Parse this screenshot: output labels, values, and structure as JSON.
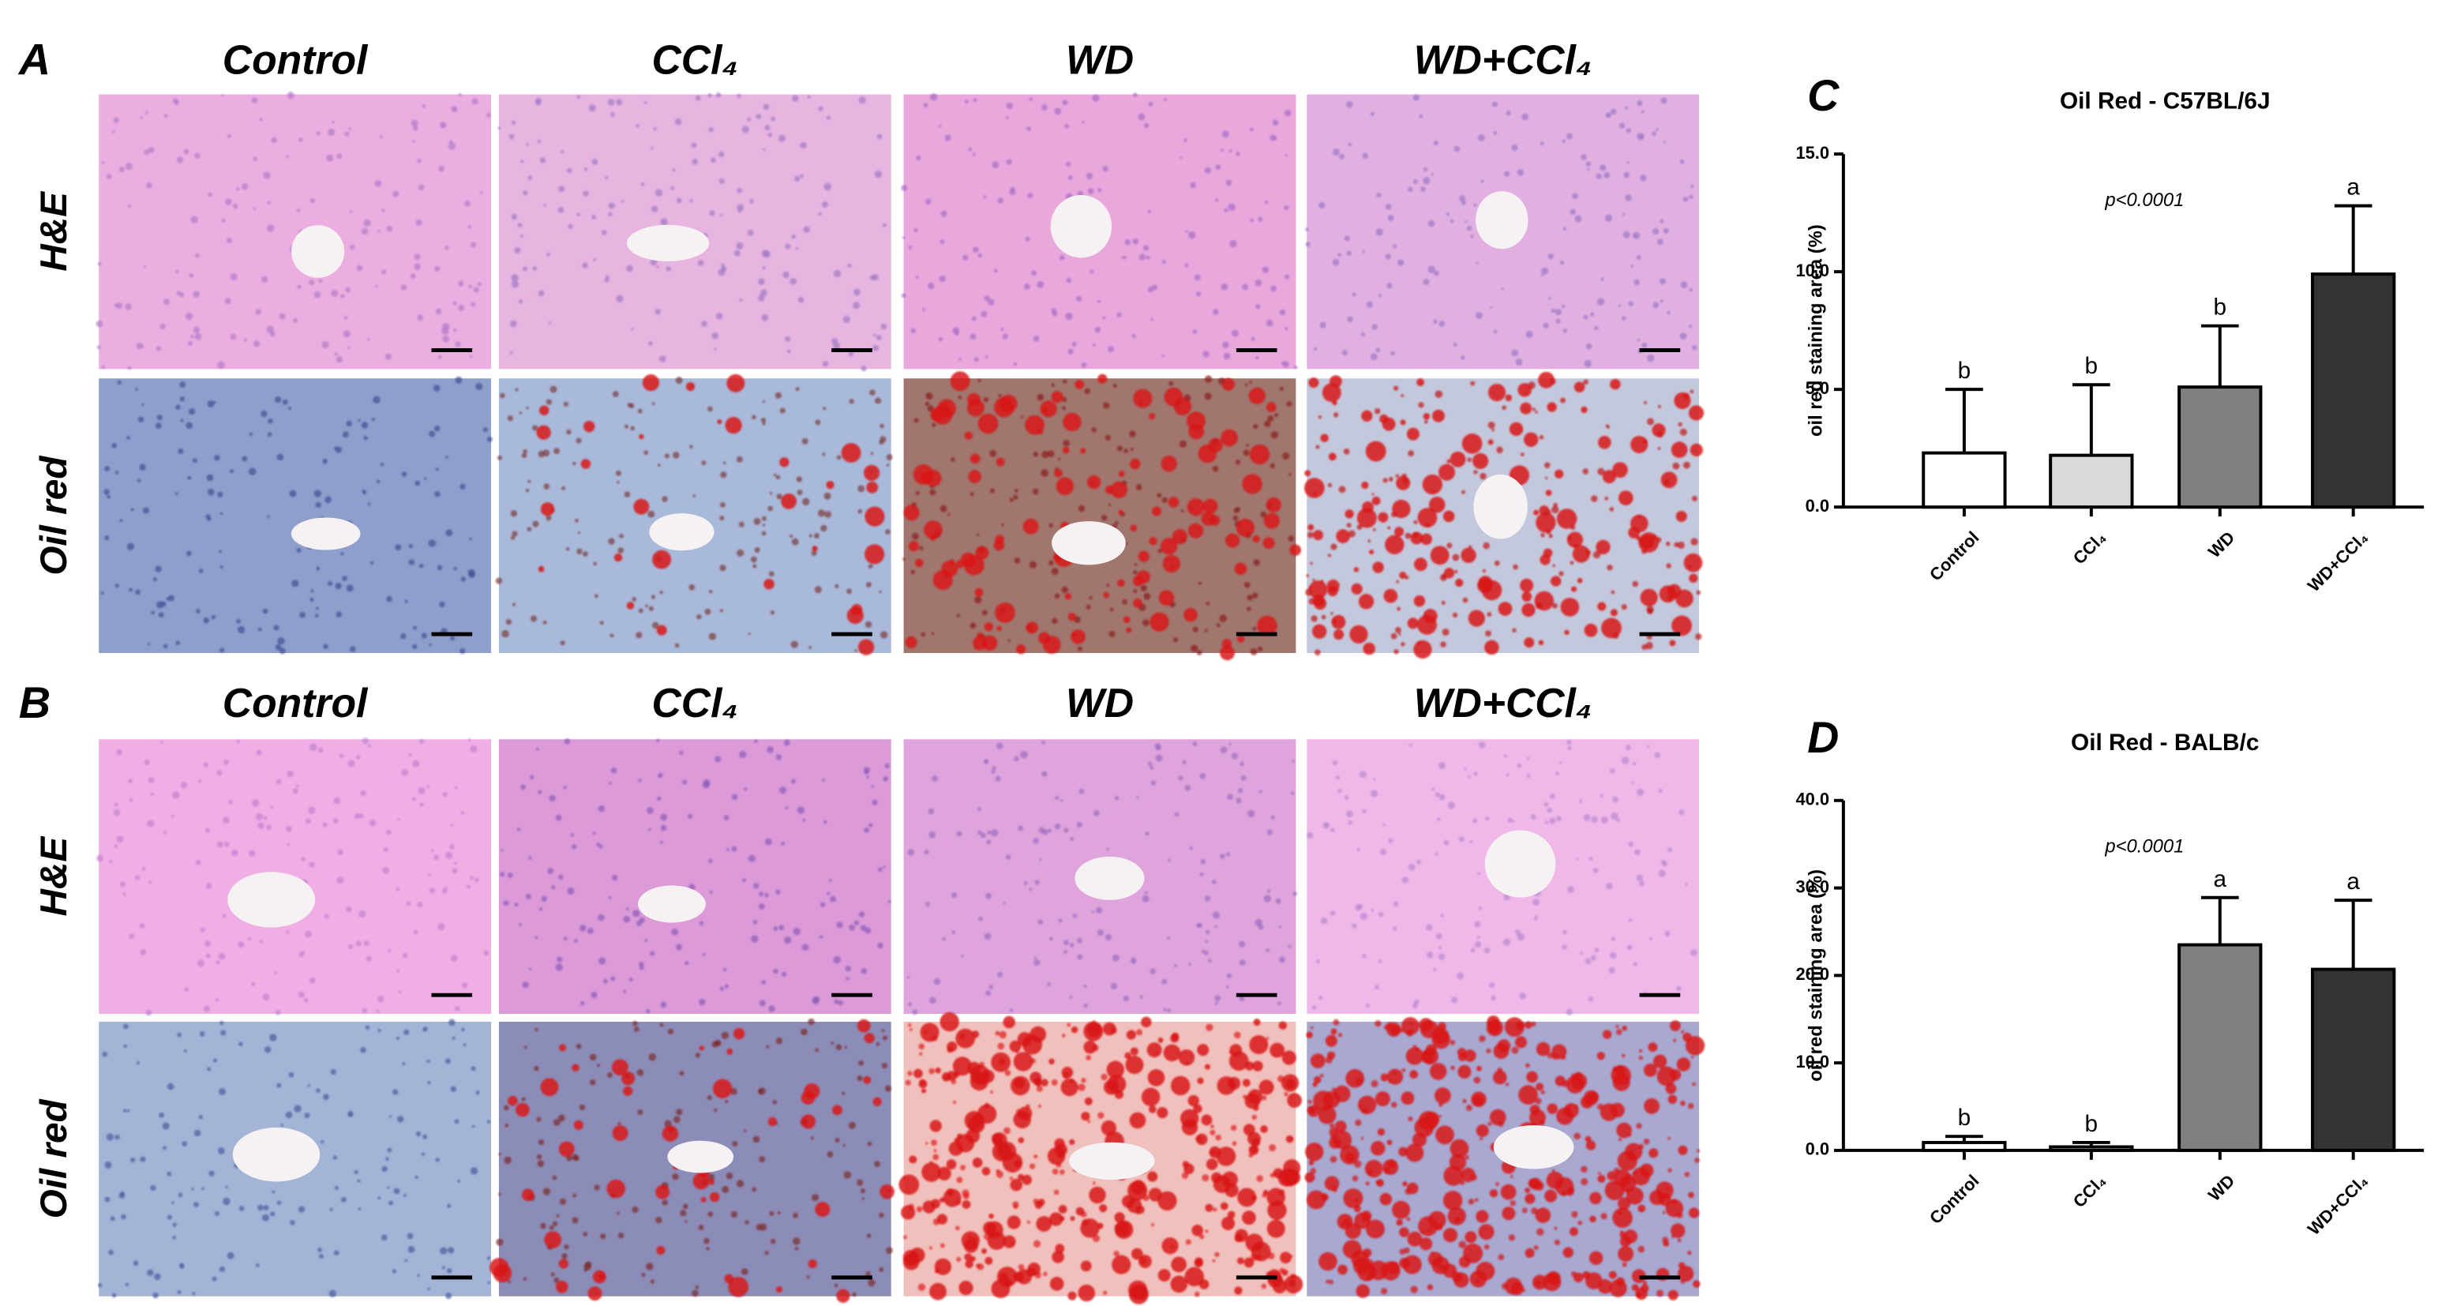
{
  "figure": {
    "panels": [
      {
        "label": "A",
        "columns": [
          "Control",
          "CCl₄",
          "WD",
          "WD+CCl₄"
        ],
        "rows": [
          "H&E",
          "Oil red"
        ]
      },
      {
        "label": "B",
        "columns": [
          "Control",
          "CCl₄",
          "WD",
          "WD+CCl₄"
        ],
        "rows": [
          "H&E",
          "Oil red"
        ]
      }
    ]
  },
  "chart_data": [
    {
      "type": "bar",
      "panel_label": "C",
      "title": "Oil Red - C57BL/6J",
      "y_label": "oil red staining area (%)",
      "annotation": "p<0.0001",
      "categories": [
        "Control",
        "CCl₄",
        "WD",
        "WD+CCl₄"
      ],
      "values": [
        2.3,
        2.2,
        5.1,
        9.9
      ],
      "errors": [
        2.7,
        3.0,
        2.6,
        2.9
      ],
      "letters": [
        "b",
        "b",
        "b",
        "a"
      ],
      "colors": [
        "#ffffff",
        "#d9d9d9",
        "#808080",
        "#333333"
      ],
      "ylim": [
        0,
        15
      ],
      "yticks": [
        {
          "value": 0,
          "label": "0.0"
        },
        {
          "value": 5,
          "label": "5.0"
        },
        {
          "value": 10,
          "label": "10.0"
        },
        {
          "value": 15,
          "label": "15.0"
        }
      ]
    },
    {
      "type": "bar",
      "panel_label": "D",
      "title": "Oil Red - BALB/c",
      "y_label": "oil red staining area (%)",
      "annotation": "p<0.0001",
      "categories": [
        "Control",
        "CCl₄",
        "WD",
        "WD+CCl₄"
      ],
      "values": [
        0.9,
        0.4,
        23.5,
        20.7
      ],
      "errors": [
        0.7,
        0.5,
        5.4,
        7.9
      ],
      "letters": [
        "b",
        "b",
        "a",
        "a"
      ],
      "colors": [
        "#ffffff",
        "#d9d9d9",
        "#808080",
        "#333333"
      ],
      "ylim": [
        0,
        40
      ],
      "yticks": [
        {
          "value": 0,
          "label": "0.0"
        },
        {
          "value": 10,
          "label": "10.0"
        },
        {
          "value": 20,
          "label": "20.0"
        },
        {
          "value": 30,
          "label": "30.0"
        },
        {
          "value": 40,
          "label": "40.0"
        }
      ]
    }
  ]
}
